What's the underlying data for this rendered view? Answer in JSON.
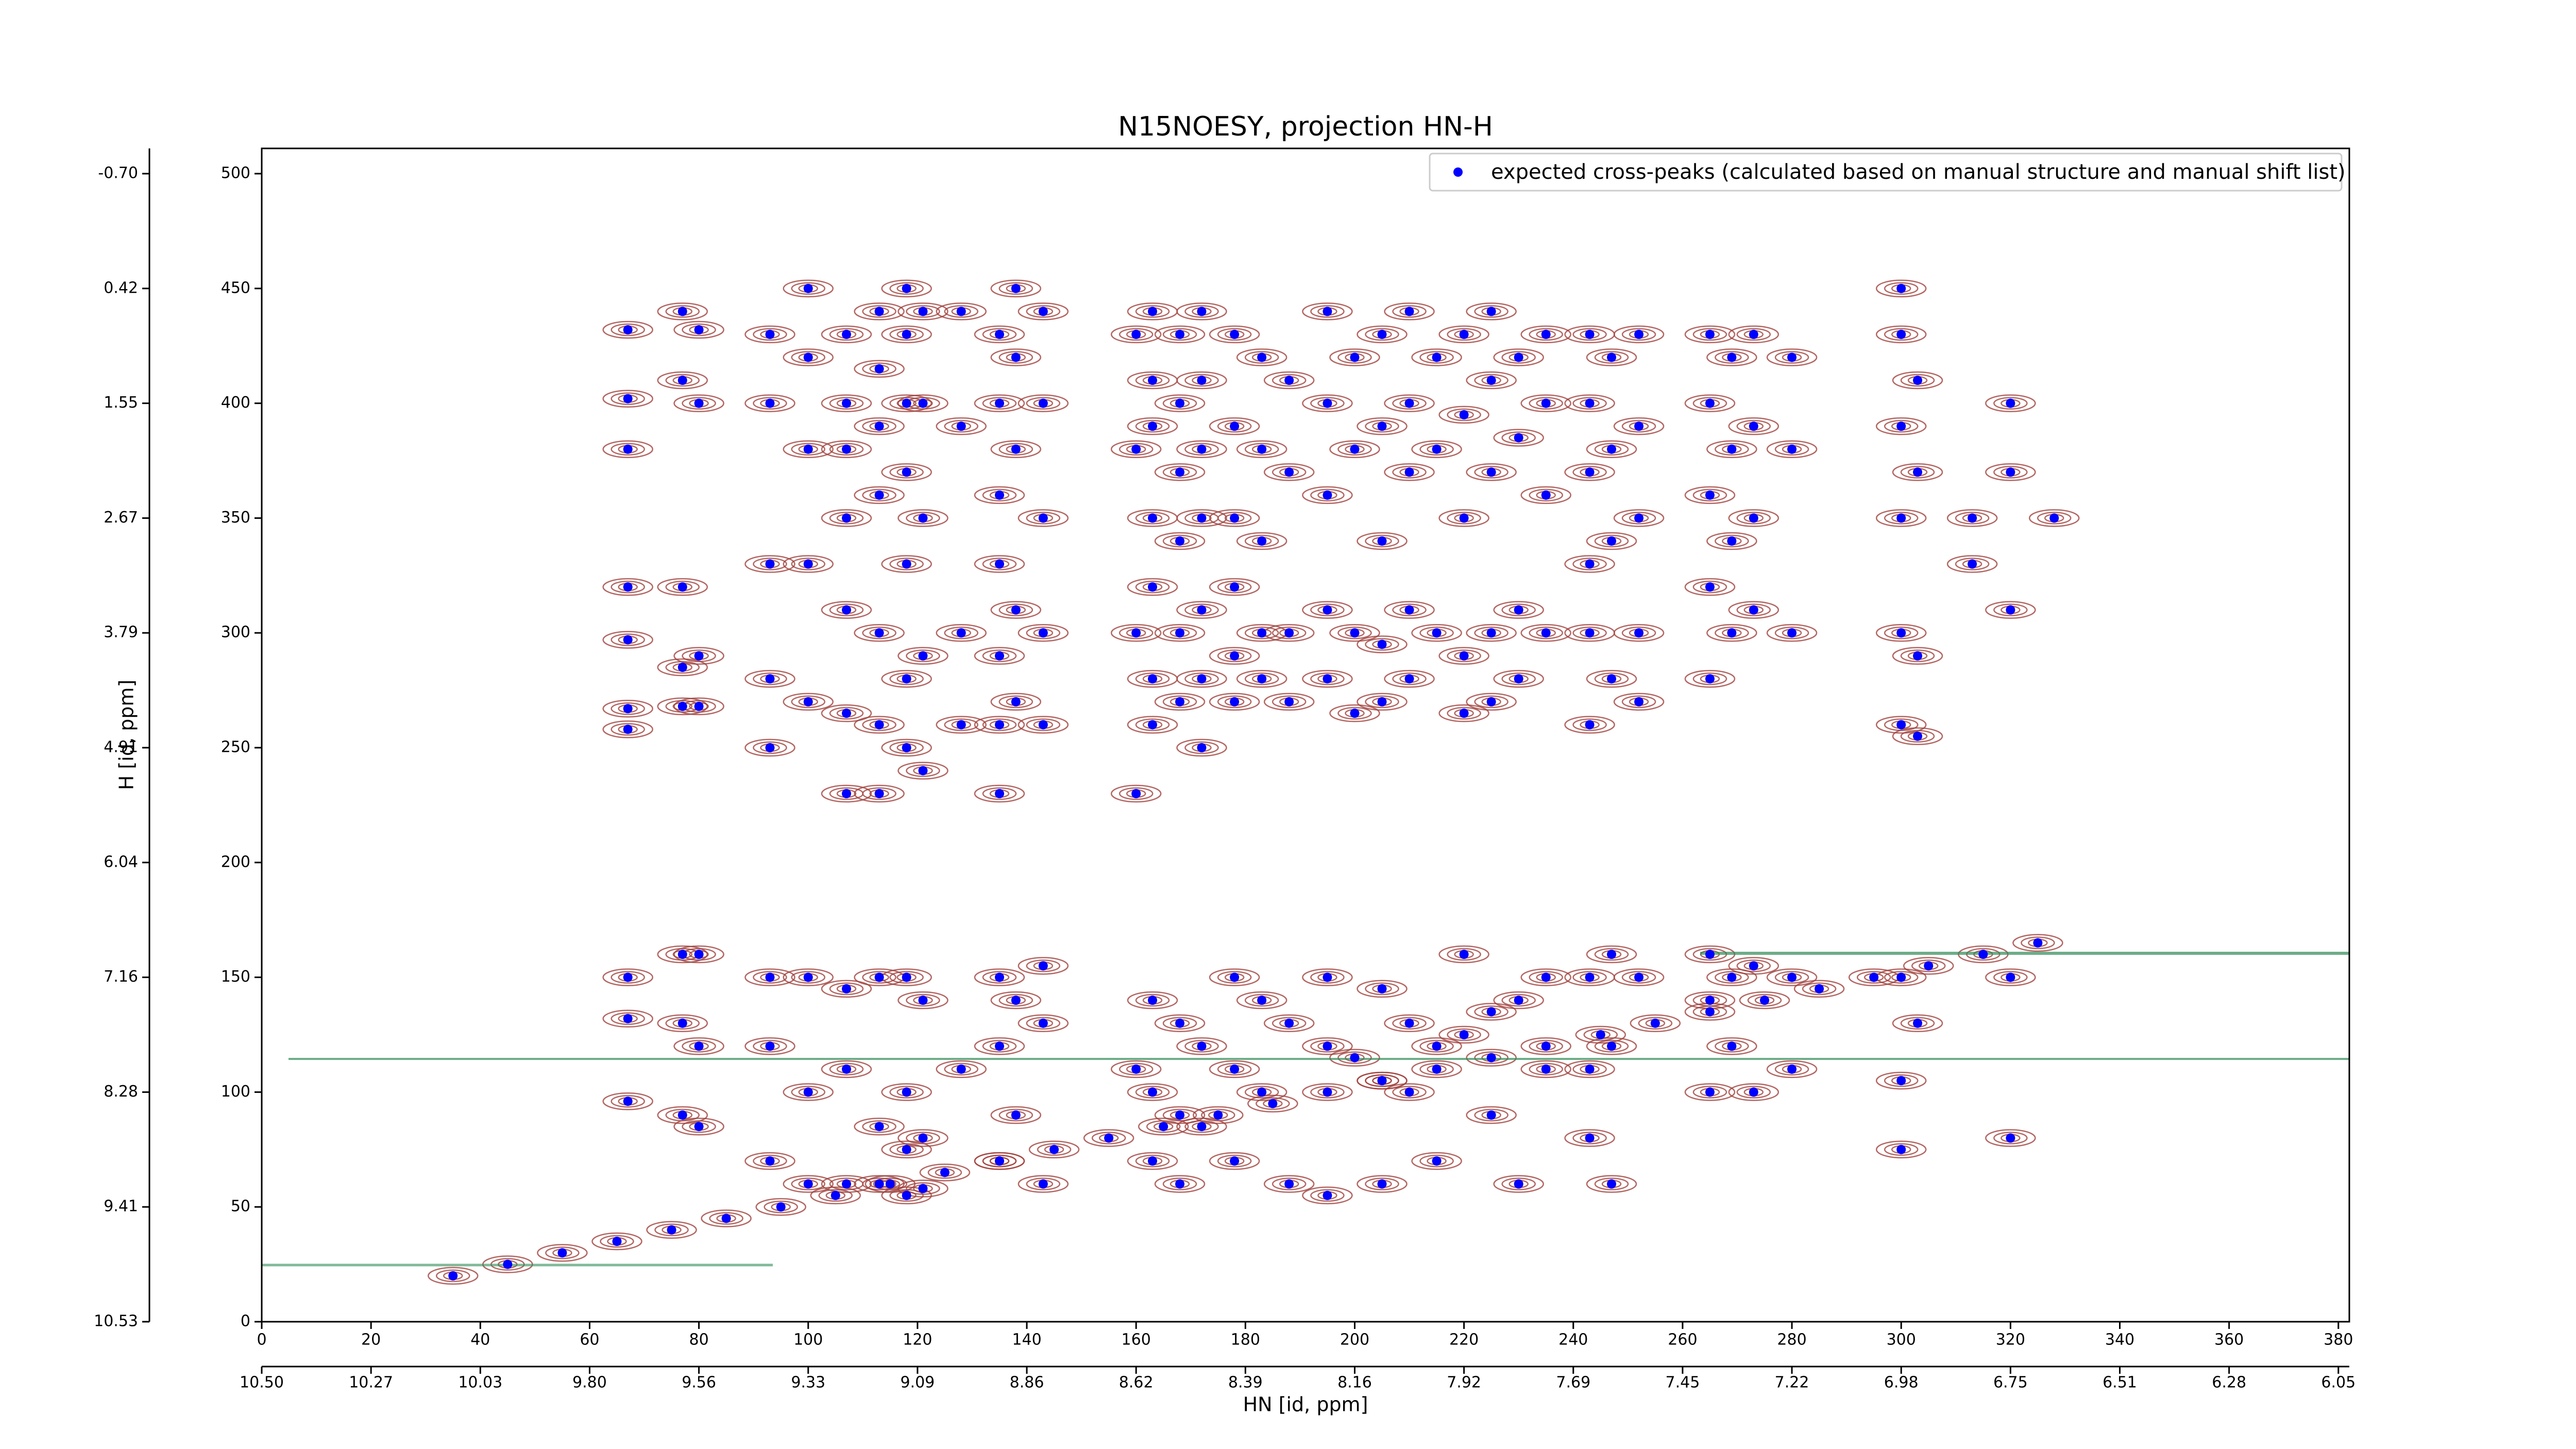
{
  "chart_data": {
    "type": "scatter",
    "title": "N15NOESY, projection HN-H",
    "x_label": "HN [id, ppm]",
    "y_label": "H [id, ppm]",
    "xlim": [
      0,
      382
    ],
    "ylim": [
      0,
      511
    ],
    "xticks": [
      0,
      20,
      40,
      60,
      80,
      100,
      120,
      140,
      160,
      180,
      200,
      220,
      240,
      260,
      280,
      300,
      320,
      340,
      360,
      380
    ],
    "yticks": [
      0,
      50,
      100,
      150,
      200,
      250,
      300,
      350,
      400,
      450,
      500
    ],
    "xticks_ppm": [
      {
        "value": 0,
        "label": "10.50"
      },
      {
        "value": 20,
        "label": "10.27"
      },
      {
        "value": 40,
        "label": "10.03"
      },
      {
        "value": 60,
        "label": "9.80"
      },
      {
        "value": 80,
        "label": "9.56"
      },
      {
        "value": 100,
        "label": "9.33"
      },
      {
        "value": 120,
        "label": "9.09"
      },
      {
        "value": 140,
        "label": "8.86"
      },
      {
        "value": 160,
        "label": "8.62"
      },
      {
        "value": 180,
        "label": "8.39"
      },
      {
        "value": 200,
        "label": "8.16"
      },
      {
        "value": 220,
        "label": "7.92"
      },
      {
        "value": 240,
        "label": "7.69"
      },
      {
        "value": 260,
        "label": "7.45"
      },
      {
        "value": 280,
        "label": "7.22"
      },
      {
        "value": 300,
        "label": "6.98"
      },
      {
        "value": 320,
        "label": "6.75"
      },
      {
        "value": 340,
        "label": "6.51"
      },
      {
        "value": 360,
        "label": "6.28"
      },
      {
        "value": 380,
        "label": "6.05"
      }
    ],
    "yticks_ppm": [
      {
        "value": 500,
        "label": "-0.70"
      },
      {
        "value": 450,
        "label": "0.42"
      },
      {
        "value": 400,
        "label": "1.55"
      },
      {
        "value": 350,
        "label": "2.67"
      },
      {
        "value": 300,
        "label": "3.79"
      },
      {
        "value": 250,
        "label": "4.91"
      },
      {
        "value": 200,
        "label": "6.04"
      },
      {
        "value": 150,
        "label": "7.16"
      },
      {
        "value": 100,
        "label": "8.28"
      },
      {
        "value": 50,
        "label": "9.41"
      },
      {
        "value": 0,
        "label": "10.53"
      }
    ],
    "contour_color": "#a0413c",
    "legend": "upper right",
    "series": [
      {
        "name": "expected cross-peaks (calculated based on manual structure and manual shift list)",
        "color": "#0000ff",
        "x": [
          67,
          67,
          67,
          67,
          67,
          67,
          67,
          67,
          67,
          67,
          77,
          77,
          77,
          77,
          77,
          77,
          77,
          77,
          80,
          80,
          80,
          80,
          80,
          80,
          80,
          93,
          93,
          93,
          93,
          93,
          93,
          93,
          93,
          100,
          100,
          100,
          100,
          100,
          100,
          100,
          100,
          107,
          107,
          107,
          107,
          107,
          107,
          107,
          107,
          107,
          107,
          113,
          113,
          113,
          113,
          113,
          113,
          113,
          113,
          113,
          113,
          118,
          118,
          118,
          118,
          118,
          118,
          118,
          118,
          118,
          118,
          118,
          121,
          121,
          121,
          121,
          121,
          121,
          121,
          121,
          128,
          128,
          128,
          128,
          128,
          135,
          135,
          135,
          135,
          135,
          135,
          135,
          135,
          135,
          135,
          138,
          138,
          138,
          138,
          138,
          138,
          138,
          143,
          143,
          143,
          143,
          143,
          143,
          143,
          143,
          160,
          160,
          160,
          160,
          160,
          163,
          163,
          163,
          163,
          163,
          163,
          163,
          163,
          163,
          163,
          168,
          168,
          168,
          168,
          168,
          168,
          168,
          168,
          168,
          172,
          172,
          172,
          172,
          172,
          172,
          172,
          172,
          172,
          178,
          178,
          178,
          178,
          178,
          178,
          178,
          178,
          178,
          183,
          183,
          183,
          183,
          183,
          183,
          183,
          188,
          188,
          188,
          188,
          188,
          188,
          195,
          195,
          195,
          195,
          195,
          195,
          195,
          195,
          200,
          200,
          200,
          200,
          200,
          205,
          205,
          205,
          205,
          205,
          205,
          205,
          205,
          210,
          210,
          210,
          210,
          210,
          210,
          210,
          215,
          215,
          215,
          215,
          215,
          220,
          220,
          220,
          220,
          220,
          220,
          220,
          225,
          225,
          225,
          225,
          225,
          225,
          225,
          230,
          230,
          230,
          230,
          230,
          230,
          235,
          235,
          235,
          235,
          235,
          235,
          243,
          243,
          243,
          243,
          243,
          243,
          243,
          243,
          243,
          247,
          247,
          247,
          247,
          247,
          247,
          247,
          252,
          252,
          252,
          252,
          252,
          252,
          265,
          265,
          265,
          265,
          265,
          265,
          265,
          265,
          269,
          269,
          269,
          269,
          269,
          269,
          273,
          273,
          273,
          273,
          273,
          273,
          280,
          280,
          280,
          280,
          280,
          300,
          300,
          300,
          300,
          300,
          300,
          300,
          300,
          300,
          303,
          303,
          303,
          303,
          303,
          313,
          313,
          320,
          320,
          320,
          320,
          320,
          328,
          35,
          45,
          55,
          65,
          75,
          85,
          95,
          105,
          115,
          125,
          135,
          145,
          155,
          165,
          175,
          185,
          195,
          205,
          215,
          225,
          235,
          245,
          255,
          265,
          275,
          285,
          295,
          305,
          315,
          325
        ],
        "values": [
          432,
          402,
          380,
          320,
          297,
          267,
          258,
          150,
          132,
          96,
          440,
          410,
          320,
          285,
          268,
          160,
          130,
          90,
          432,
          400,
          290,
          268,
          160,
          120,
          85,
          430,
          400,
          330,
          280,
          250,
          150,
          120,
          70,
          450,
          420,
          380,
          330,
          270,
          150,
          100,
          60,
          430,
          400,
          380,
          350,
          310,
          265,
          230,
          145,
          110,
          60,
          440,
          415,
          390,
          360,
          300,
          260,
          230,
          150,
          85,
          60,
          450,
          430,
          400,
          370,
          330,
          280,
          250,
          150,
          100,
          75,
          55,
          440,
          400,
          350,
          290,
          240,
          140,
          80,
          58,
          440,
          390,
          300,
          260,
          110,
          430,
          400,
          360,
          330,
          290,
          260,
          230,
          150,
          120,
          70,
          450,
          420,
          380,
          310,
          270,
          140,
          90,
          440,
          400,
          350,
          300,
          260,
          155,
          130,
          60,
          430,
          380,
          300,
          230,
          110,
          440,
          410,
          390,
          350,
          320,
          280,
          260,
          140,
          100,
          70,
          430,
          400,
          370,
          340,
          300,
          270,
          130,
          90,
          60,
          440,
          410,
          380,
          350,
          310,
          280,
          250,
          120,
          85,
          430,
          390,
          350,
          320,
          290,
          270,
          150,
          110,
          70,
          420,
          380,
          340,
          300,
          280,
          140,
          100,
          410,
          370,
          300,
          270,
          130,
          60,
          440,
          400,
          360,
          310,
          280,
          150,
          120,
          55,
          420,
          380,
          300,
          265,
          115,
          430,
          390,
          340,
          295,
          270,
          145,
          105,
          60,
          440,
          400,
          370,
          310,
          280,
          130,
          100,
          420,
          380,
          300,
          120,
          70,
          430,
          395,
          350,
          290,
          265,
          160,
          125,
          440,
          410,
          370,
          300,
          270,
          135,
          90,
          420,
          385,
          310,
          280,
          140,
          60,
          430,
          400,
          360,
          300,
          150,
          110,
          430,
          400,
          370,
          330,
          300,
          260,
          150,
          110,
          80,
          420,
          380,
          340,
          280,
          160,
          120,
          60,
          430,
          390,
          350,
          300,
          270,
          150,
          430,
          400,
          360,
          320,
          280,
          160,
          140,
          100,
          420,
          380,
          340,
          300,
          150,
          120,
          430,
          390,
          350,
          310,
          155,
          100,
          420,
          380,
          300,
          150,
          110,
          450,
          430,
          390,
          350,
          300,
          260,
          150,
          105,
          75,
          410,
          370,
          290,
          255,
          130,
          350,
          330,
          400,
          370,
          310,
          150,
          80,
          350,
          20,
          25,
          30,
          35,
          40,
          45,
          50,
          55,
          60,
          65,
          70,
          75,
          80,
          85,
          90,
          95,
          100,
          105,
          110,
          115,
          120,
          125,
          130,
          135,
          140,
          145,
          150,
          155,
          160,
          165
        ]
      }
    ]
  }
}
